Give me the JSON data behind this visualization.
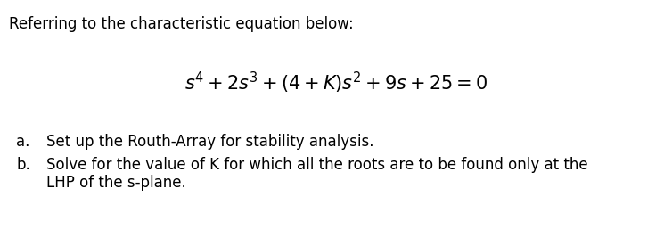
{
  "bg_color": "#ffffff",
  "text_color": "#000000",
  "figsize": [
    7.54,
    2.58
  ],
  "dpi": 100,
  "header": "Referring to the characteristic equation below:",
  "equation": "$s^4 + 2s^3 + (4 + K)s^2 + 9s + 25 = 0$",
  "item_a_label": "a.",
  "item_a_text": "Set up the Routh-Array for stability analysis.",
  "item_b_label": "b.",
  "item_b_text1": "Solve for the value of K for which all the roots are to be found only at the",
  "item_b_text2": "LHP of the s-plane.",
  "font_size_header": 12,
  "font_size_equation": 15,
  "font_size_items": 12,
  "font_family": "DejaVu Sans",
  "font_weight_header": "normal",
  "font_weight_items": "normal"
}
